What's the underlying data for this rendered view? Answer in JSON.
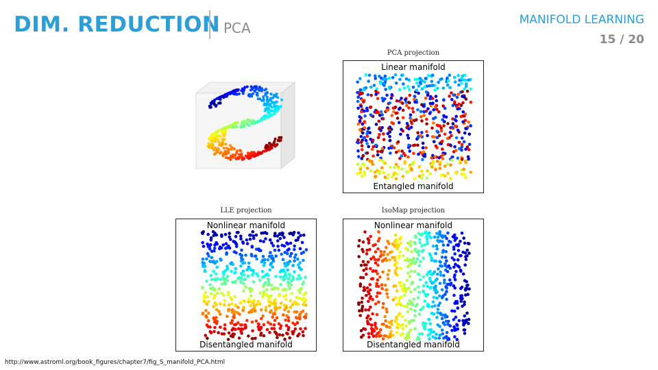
{
  "header": {
    "title": "DIM. REDUCTION",
    "subtitle": "PCA",
    "section": "MANIFOLD LEARNING",
    "page": "15 / 20"
  },
  "figure": {
    "panels": [
      {
        "id": "pca",
        "title": "PCA projection",
        "top_label": "Linear manifold",
        "bottom_label": "Entangled manifold"
      },
      {
        "id": "lle",
        "title": "LLE projection",
        "top_label": "Nonlinear manifold",
        "bottom_label": "Disentangled manifold"
      },
      {
        "id": "isomap",
        "title": "IsoMap projection",
        "top_label": "Nonlinear manifold",
        "bottom_label": "Disentangled manifold"
      }
    ],
    "colormap": [
      "#00008f",
      "#0000ff",
      "#0080ff",
      "#00ffff",
      "#80ff80",
      "#ffff00",
      "#ff8000",
      "#ff0000",
      "#800000"
    ]
  },
  "footer": {
    "source": "http://www.astroml.org/book_figures/chapter7/fig_S_manifold_PCA.html"
  }
}
